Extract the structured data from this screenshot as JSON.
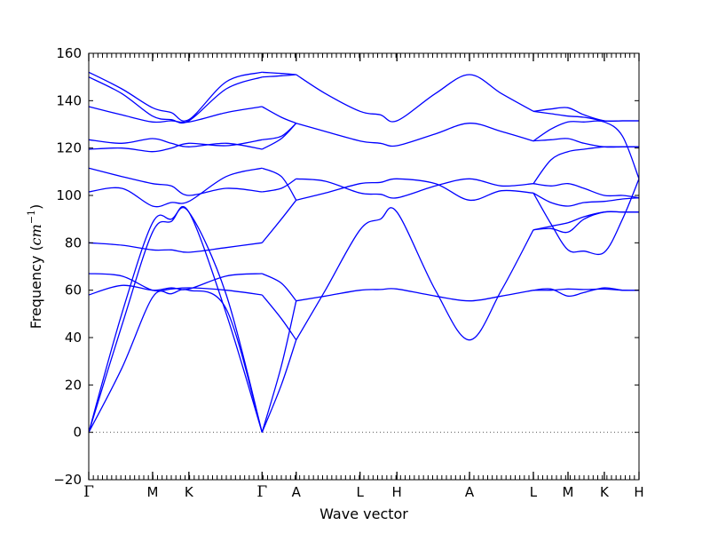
{
  "chart_data": {
    "type": "line",
    "xlabel": "Wave vector",
    "ylabel": {
      "prefix": "Frequency (",
      "unit": "cm",
      "exponent": "−1",
      "suffix": ")"
    },
    "ylim": [
      -20,
      160
    ],
    "yticks": [
      -20,
      0,
      20,
      40,
      60,
      80,
      100,
      120,
      140,
      160
    ],
    "grid": false,
    "line_color": "#0000ff",
    "zero_line_color": "#555555",
    "x_points": [
      {
        "label": "Γ",
        "x": 0.0
      },
      {
        "label": "M",
        "x": 0.116
      },
      {
        "label": "K",
        "x": 0.182
      },
      {
        "label": "Γ",
        "x": 0.315
      },
      {
        "label": "A",
        "x": 0.377
      },
      {
        "label": "L",
        "x": 0.493
      },
      {
        "label": "H",
        "x": 0.56
      },
      {
        "label": "A",
        "x": 0.692
      },
      {
        "label": "L",
        "x": 0.808
      },
      {
        "label": "M",
        "x": 0.871
      },
      {
        "label": "K",
        "x": 0.937
      },
      {
        "label": "H",
        "x": 1.0
      }
    ],
    "series": [
      {
        "x": [
          0,
          0.06,
          0.116,
          0.15,
          0.182,
          0.25,
          0.315
        ],
        "values": [
          0,
          27,
          57,
          58.5,
          60,
          52,
          0
        ]
      },
      {
        "x": [
          0,
          0.06,
          0.116,
          0.15,
          0.182,
          0.25,
          0.315
        ],
        "values": [
          0,
          45,
          84.5,
          89,
          93,
          50,
          0
        ]
      },
      {
        "x": [
          0,
          0.06,
          0.116,
          0.15,
          0.182,
          0.25,
          0.315
        ],
        "values": [
          0,
          50,
          88.5,
          90,
          93,
          58,
          0
        ]
      },
      {
        "x": [
          0,
          0.06,
          0.116,
          0.15,
          0.182,
          0.25,
          0.315
        ],
        "values": [
          58,
          62,
          60,
          61,
          60.5,
          66,
          67
        ]
      },
      {
        "x": [
          0,
          0.06,
          0.116,
          0.15,
          0.182,
          0.25,
          0.315
        ],
        "values": [
          67,
          66,
          60,
          60.5,
          61,
          60,
          58
        ]
      },
      {
        "x": [
          0,
          0.06,
          0.116,
          0.15,
          0.182,
          0.25,
          0.315
        ],
        "values": [
          80,
          79,
          77,
          77,
          76,
          78,
          80
        ]
      },
      {
        "x": [
          0,
          0.06,
          0.116,
          0.15,
          0.182,
          0.25,
          0.315
        ],
        "values": [
          101.5,
          103,
          95.5,
          97,
          97.5,
          108,
          111.5
        ]
      },
      {
        "x": [
          0,
          0.06,
          0.116,
          0.15,
          0.182,
          0.25,
          0.315
        ],
        "values": [
          111.5,
          108,
          105,
          104,
          100,
          103,
          101.5
        ]
      },
      {
        "x": [
          0,
          0.06,
          0.116,
          0.15,
          0.182,
          0.25,
          0.315
        ],
        "values": [
          119.5,
          120,
          118.5,
          120,
          122,
          121,
          123.5
        ]
      },
      {
        "x": [
          0,
          0.06,
          0.116,
          0.15,
          0.182,
          0.25,
          0.315
        ],
        "values": [
          123.5,
          122,
          124,
          122,
          120.5,
          122,
          119.5
        ]
      },
      {
        "x": [
          0,
          0.06,
          0.116,
          0.15,
          0.182,
          0.25,
          0.315
        ],
        "values": [
          137.5,
          134,
          131,
          131.5,
          131,
          135,
          137.5
        ]
      },
      {
        "x": [
          0,
          0.06,
          0.116,
          0.15,
          0.182,
          0.25,
          0.315
        ],
        "values": [
          150,
          143,
          133.5,
          132,
          131.5,
          145,
          150
        ]
      },
      {
        "x": [
          0,
          0.06,
          0.116,
          0.15,
          0.182,
          0.25,
          0.315
        ],
        "values": [
          152,
          145,
          137,
          135,
          132,
          148,
          152
        ]
      },
      {
        "x": [
          0.315,
          0.35,
          0.377
        ],
        "values": [
          0,
          20,
          39
        ]
      },
      {
        "x": [
          0.315,
          0.35,
          0.377
        ],
        "values": [
          58,
          48,
          39
        ]
      },
      {
        "x": [
          0.315,
          0.35,
          0.377
        ],
        "values": [
          0,
          28,
          55.5
        ]
      },
      {
        "x": [
          0.315,
          0.35,
          0.377
        ],
        "values": [
          67,
          63,
          55.5
        ]
      },
      {
        "x": [
          0.315,
          0.35,
          0.377
        ],
        "values": [
          80,
          90,
          98
        ]
      },
      {
        "x": [
          0.315,
          0.35,
          0.377
        ],
        "values": [
          101.5,
          103,
          107
        ]
      },
      {
        "x": [
          0.315,
          0.35,
          0.377
        ],
        "values": [
          111.5,
          108,
          98
        ]
      },
      {
        "x": [
          0.315,
          0.35,
          0.377
        ],
        "values": [
          119.5,
          124,
          130.5
        ]
      },
      {
        "x": [
          0.315,
          0.35,
          0.377
        ],
        "values": [
          123.5,
          125,
          130.5
        ]
      },
      {
        "x": [
          0.315,
          0.35,
          0.377
        ],
        "values": [
          137.5,
          133,
          130.5
        ]
      },
      {
        "x": [
          0.315,
          0.35,
          0.377
        ],
        "values": [
          150,
          150.5,
          151
        ]
      },
      {
        "x": [
          0.315,
          0.35,
          0.377
        ],
        "values": [
          152,
          151.5,
          151
        ]
      },
      {
        "x": [
          0.377,
          0.43,
          0.493,
          0.53,
          0.56,
          0.63,
          0.692,
          0.75,
          0.808
        ],
        "values": [
          39,
          60,
          85.5,
          90,
          93,
          60,
          39,
          60,
          85.5
        ]
      },
      {
        "x": [
          0.377,
          0.43,
          0.493,
          0.53,
          0.56,
          0.63,
          0.692,
          0.75,
          0.808
        ],
        "values": [
          55.5,
          57.5,
          60,
          60.3,
          60.5,
          57.5,
          55.5,
          57.5,
          60
        ]
      },
      {
        "x": [
          0.377,
          0.43,
          0.493,
          0.53,
          0.56,
          0.63,
          0.692,
          0.75,
          0.808
        ],
        "values": [
          98,
          101,
          105,
          105.5,
          107,
          105,
          98,
          102,
          101
        ]
      },
      {
        "x": [
          0.377,
          0.43,
          0.493,
          0.53,
          0.56,
          0.63,
          0.692,
          0.75,
          0.808
        ],
        "values": [
          107,
          106,
          101,
          100.5,
          99,
          104,
          107,
          104,
          105
        ]
      },
      {
        "x": [
          0.377,
          0.43,
          0.493,
          0.53,
          0.56,
          0.63,
          0.692,
          0.75,
          0.808
        ],
        "values": [
          130.5,
          127,
          123,
          122,
          121,
          126,
          130.5,
          127,
          123
        ]
      },
      {
        "x": [
          0.377,
          0.43,
          0.493,
          0.53,
          0.56,
          0.63,
          0.692,
          0.75,
          0.808
        ],
        "values": [
          151,
          143,
          135.5,
          134,
          131.5,
          143,
          151,
          143,
          135.5
        ]
      },
      {
        "x": [
          0.808,
          0.84,
          0.871,
          0.9,
          0.937,
          0.97,
          1.0
        ],
        "values": [
          85.5,
          87,
          88.5,
          91,
          93,
          93,
          93
        ]
      },
      {
        "x": [
          0.808,
          0.84,
          0.871,
          0.9,
          0.937,
          0.97,
          1.0
        ],
        "values": [
          85.5,
          86,
          84.5,
          90,
          93,
          93,
          93
        ]
      },
      {
        "x": [
          0.808,
          0.84,
          0.871,
          0.9,
          0.937,
          0.97,
          1.0
        ],
        "values": [
          60,
          60.5,
          57.5,
          59,
          61,
          60,
          60
        ]
      },
      {
        "x": [
          0.808,
          0.84,
          0.871,
          0.9,
          0.937,
          0.97,
          1.0
        ],
        "values": [
          60,
          60,
          60.5,
          60.3,
          60.5,
          60,
          60
        ]
      },
      {
        "x": [
          0.808,
          0.84,
          0.871,
          0.9,
          0.937,
          0.97,
          1.0
        ],
        "values": [
          101,
          97,
          95.5,
          97,
          97.5,
          98.5,
          99
        ]
      },
      {
        "x": [
          0.808,
          0.84,
          0.871,
          0.9,
          0.937,
          0.97,
          1.0
        ],
        "values": [
          105,
          104,
          105,
          103,
          100,
          100,
          99
        ]
      },
      {
        "x": [
          0.808,
          0.84,
          0.871,
          0.9,
          0.937,
          0.97,
          1.0
        ],
        "values": [
          101,
          88,
          77,
          76.5,
          76,
          90,
          107
        ]
      },
      {
        "x": [
          0.808,
          0.84,
          0.871,
          0.9,
          0.937,
          0.97,
          1.0
        ],
        "values": [
          105,
          115,
          118.5,
          119.5,
          120.5,
          120.5,
          120.5
        ]
      },
      {
        "x": [
          0.808,
          0.84,
          0.871,
          0.9,
          0.937,
          0.97,
          1.0
        ],
        "values": [
          123,
          123.5,
          124,
          122,
          120.5,
          120.5,
          120.5
        ]
      },
      {
        "x": [
          0.808,
          0.84,
          0.871,
          0.9,
          0.937,
          0.97,
          1.0
        ],
        "values": [
          123,
          128,
          131,
          131,
          131,
          125,
          107
        ]
      },
      {
        "x": [
          0.808,
          0.84,
          0.871,
          0.9,
          0.937,
          0.97,
          1.0
        ],
        "values": [
          135.5,
          134.5,
          133.5,
          133,
          131.5,
          131.5,
          131.5
        ]
      },
      {
        "x": [
          0.808,
          0.84,
          0.871,
          0.9,
          0.937,
          0.97,
          1.0
        ],
        "values": [
          135.5,
          136.5,
          137,
          134,
          131.5,
          131.5,
          131.5
        ]
      }
    ]
  }
}
